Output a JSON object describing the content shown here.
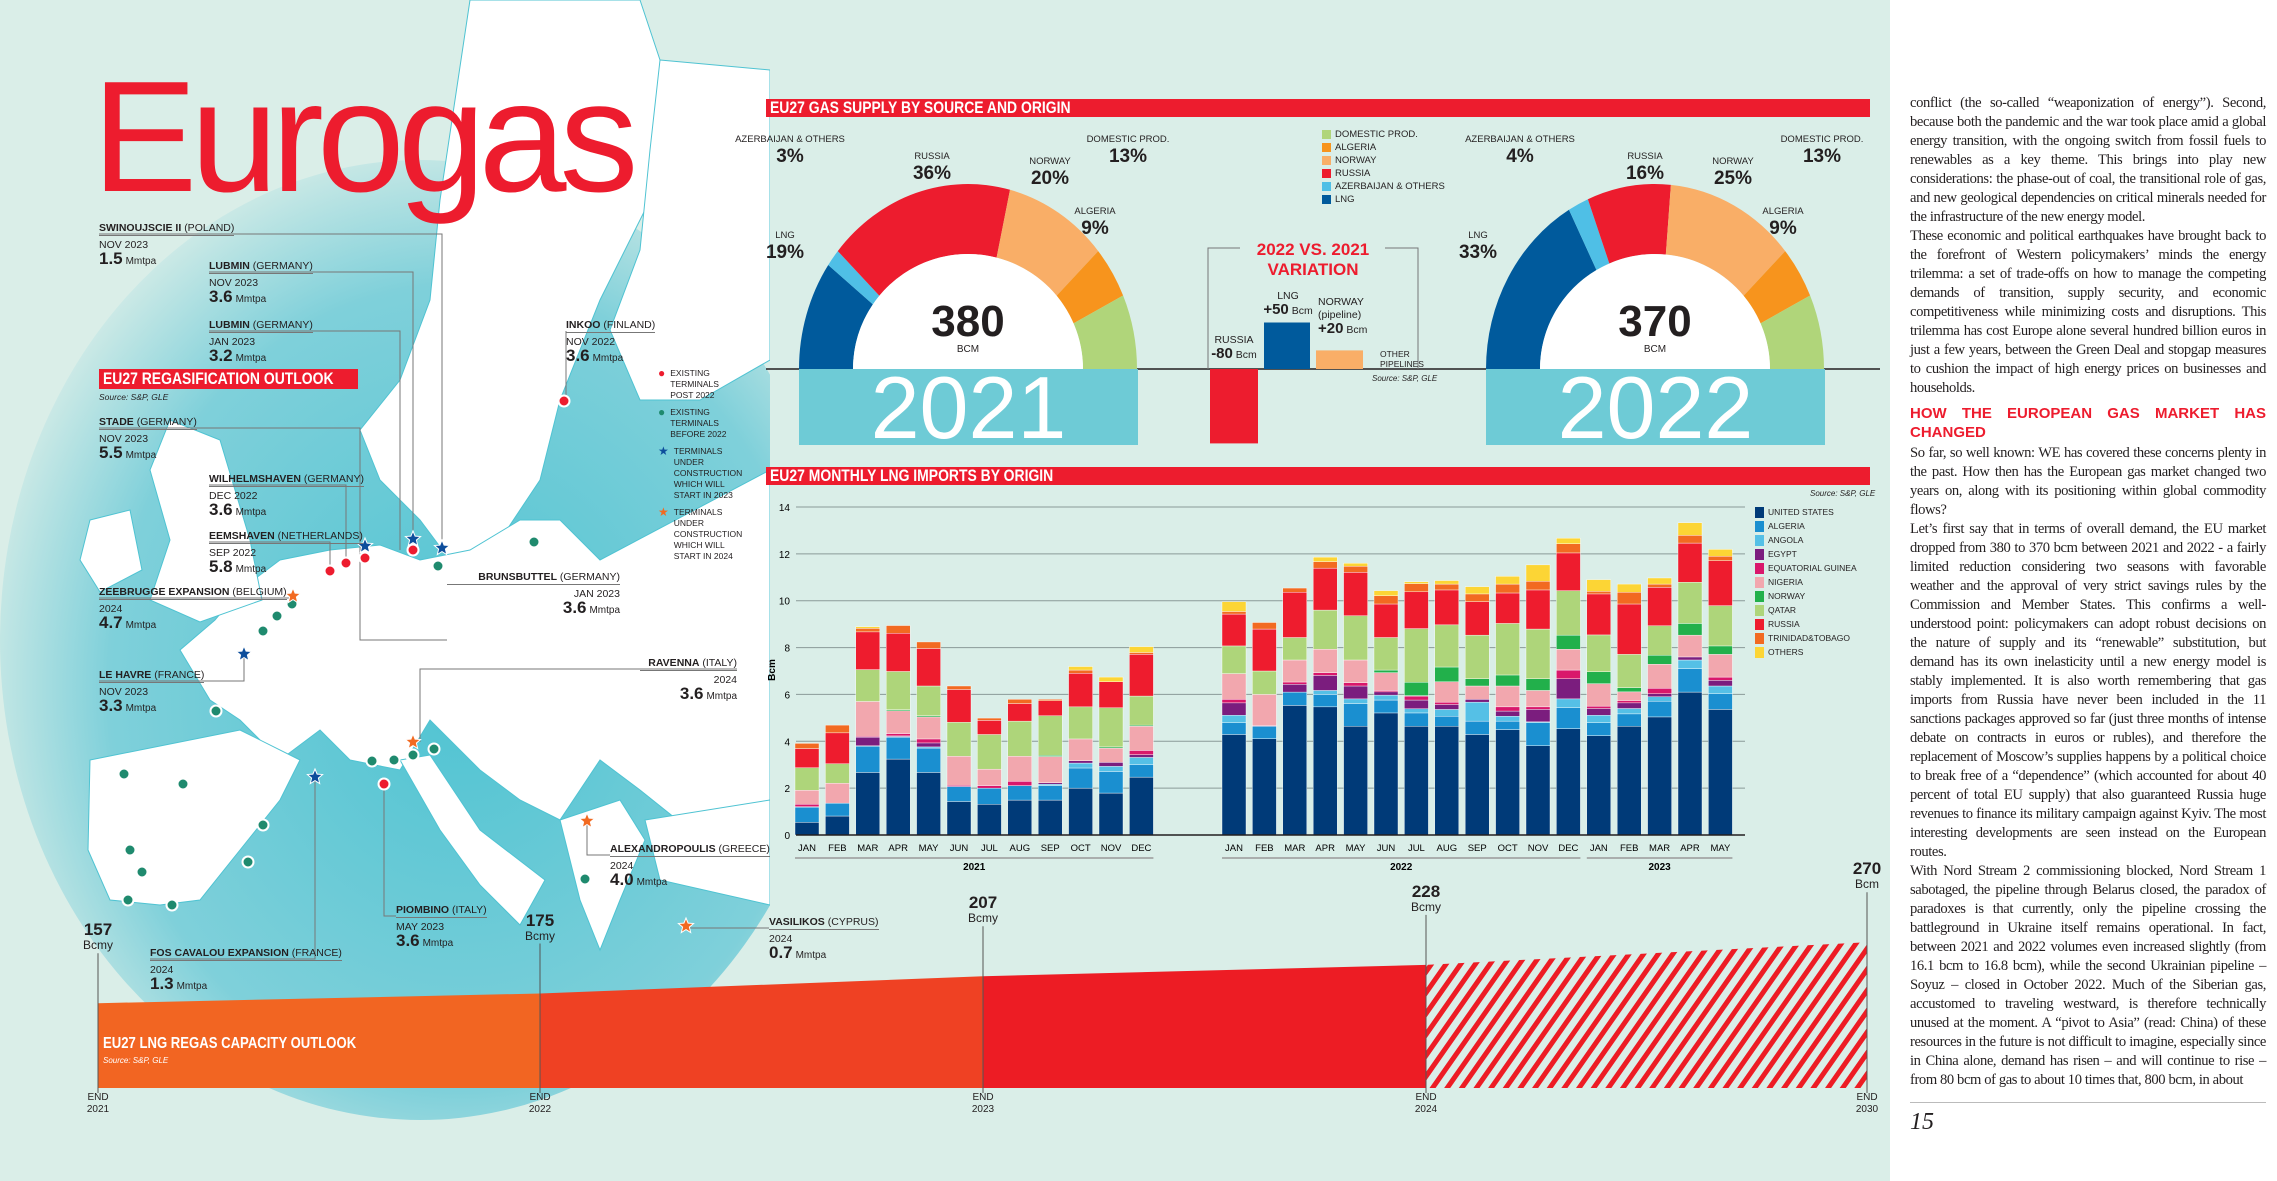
{
  "page_title": "Eurogas",
  "page_number": "15",
  "colors": {
    "brand_red": "#ed1c2e",
    "sea": "#5cc6d3",
    "year_box": "#6ecbd6"
  },
  "regas": {
    "title": "EU27 REGASIFICATION OUTLOOK",
    "source": "Source: S&P, GLE",
    "unit": "Mmtpa",
    "terminals": [
      {
        "name": "SWINOUJSCIE II",
        "country": "(POLAND)",
        "date": "NOV 2023",
        "value": "1.5"
      },
      {
        "name": "LUBMIN",
        "country": "(GERMANY)",
        "date": "NOV 2023",
        "value": "3.6"
      },
      {
        "name": "LUBMIN",
        "country": "(GERMANY)",
        "date": "JAN 2023",
        "value": "3.2"
      },
      {
        "name": "INKOO",
        "country": "(FINLAND)",
        "date": "NOV 2022",
        "value": "3.6"
      },
      {
        "name": "STADE",
        "country": "(GERMANY)",
        "date": "NOV 2023",
        "value": "5.5"
      },
      {
        "name": "WILHELMSHAVEN",
        "country": "(GERMANY)",
        "date": "DEC 2022",
        "value": "3.6"
      },
      {
        "name": "EEMSHAVEN",
        "country": "(NETHERLANDS)",
        "date": "SEP 2022",
        "value": "5.8"
      },
      {
        "name": "ZEEBRUGGE EXPANSION",
        "country": "(BELGIUM)",
        "date": "2024",
        "value": "4.7"
      },
      {
        "name": "BRUNSBUTTEL",
        "country": "(GERMANY)",
        "date": "JAN 2023",
        "value": "3.6"
      },
      {
        "name": "LE HAVRE",
        "country": "(FRANCE)",
        "date": "NOV 2023",
        "value": "3.3"
      },
      {
        "name": "RAVENNA",
        "country": "(ITALY)",
        "date": "2024",
        "value": "3.6"
      },
      {
        "name": "ALEXANDROPOULIS",
        "country": "(GREECE)",
        "date": "2024",
        "value": "4.0"
      },
      {
        "name": "PIOMBINO",
        "country": "(ITALY)",
        "date": "MAY 2023",
        "value": "3.6"
      },
      {
        "name": "FOS CAVALOU EXPANSION",
        "country": "(FRANCE)",
        "date": "2024",
        "value": "1.3"
      },
      {
        "name": "VASILIKOS",
        "country": "(CYPRUS)",
        "date": "2024",
        "value": "0.7"
      }
    ],
    "legend": [
      {
        "label": "EXISTING TERMINALS POST 2022",
        "marker": "dot",
        "color": "#ed1c2e"
      },
      {
        "label": "EXISTING TERMINALS BEFORE 2022",
        "marker": "dot",
        "color": "#1f8a6e"
      },
      {
        "label": "TERMINALS UNDER CONSTRUCTION WHICH WILL START IN 2023",
        "marker": "star",
        "color": "#0d4e9c"
      },
      {
        "label": "TERMINALS UNDER CONSTRUCTION WHICH WILL START IN 2024",
        "marker": "star",
        "color": "#f26a21"
      }
    ]
  },
  "supply": {
    "title": "EU27 GAS SUPPLY BY SOURCE AND ORIGIN",
    "unit": "BCM",
    "legend": [
      {
        "label": "DOMESTIC PROD.",
        "color": "#b0d57a"
      },
      {
        "label": "ALGERIA",
        "color": "#f7941d"
      },
      {
        "label": "NORWAY",
        "color": "#f9ae67"
      },
      {
        "label": "RUSSIA",
        "color": "#ed1c2e"
      },
      {
        "label": "AZERBAIJAN & OTHERS",
        "color": "#4fbfe6"
      },
      {
        "label": "LNG",
        "color": "#005a9c"
      }
    ],
    "years": [
      {
        "year": "2021",
        "total": "380",
        "shares": {
          "lng": "19%",
          "azerbaijan": "3%",
          "russia": "36%",
          "norway": "20%",
          "algeria": "9%",
          "domestic": "13%"
        }
      },
      {
        "year": "2022",
        "total": "370",
        "shares": {
          "lng": "33%",
          "azerbaijan": "4%",
          "russia": "16%",
          "norway": "25%",
          "algeria": "9%",
          "domestic": "13%"
        }
      }
    ],
    "labels": {
      "lng": "LNG",
      "azerbaijan": "AZERBAIJAN & OTHERS",
      "russia": "RUSSIA",
      "norway": "NORWAY",
      "algeria": "ALGERIA",
      "domestic": "DOMESTIC PROD."
    },
    "variation": {
      "title_line1": "2022 VS. 2021",
      "title_line2": "VARIATION",
      "russia_label": "RUSSIA",
      "russia_value": "-80",
      "russia_num": -80,
      "lng_label": "LNG",
      "lng_value": "+50",
      "lng_num": 50,
      "norway_label": "NORWAY",
      "norway_sub": "(pipeline)",
      "norway_value": "+20",
      "norway_num": 20,
      "other_label": "OTHER PIPELINES",
      "unit": "Bcm",
      "source": "Source: S&P, GLE"
    }
  },
  "chart_data": [
    {
      "type": "pie",
      "title": "2021",
      "categories": [
        "LNG",
        "AZERBAIJAN & OTHERS",
        "RUSSIA",
        "NORWAY",
        "ALGERIA",
        "DOMESTIC PROD."
      ],
      "values": [
        19,
        3,
        36,
        20,
        9,
        13
      ],
      "total": 380
    },
    {
      "type": "pie",
      "title": "2022",
      "categories": [
        "LNG",
        "AZERBAIJAN & OTHERS",
        "RUSSIA",
        "NORWAY",
        "ALGERIA",
        "DOMESTIC PROD."
      ],
      "values": [
        33,
        4,
        16,
        25,
        9,
        13
      ],
      "total": 370
    },
    {
      "type": "bar",
      "title": "EU27 MONTHLY LNG IMPORTS BY ORIGIN",
      "source": "Source: S&P, GLE",
      "ylabel": "Bcm",
      "ylim": [
        0,
        14
      ],
      "yticks": [
        "0",
        "2",
        "4",
        "6",
        "8",
        "10",
        "12",
        "14"
      ],
      "grid": true,
      "stacked": true,
      "legend_position": "right",
      "groups": [
        {
          "label": "2021",
          "months": [
            "JAN",
            "FEB",
            "MAR",
            "APR",
            "MAY",
            "JUN",
            "JUL",
            "AUG",
            "SEP",
            "OCT",
            "NOV",
            "DEC"
          ]
        },
        {
          "label": "2022",
          "months": [
            "JAN",
            "FEB",
            "MAR",
            "APR",
            "MAY",
            "JUN",
            "JUL",
            "AUG",
            "SEP",
            "OCT",
            "NOV",
            "DEC"
          ]
        },
        {
          "label": "2023",
          "months": [
            "JAN",
            "FEB",
            "MAR",
            "APR",
            "MAY"
          ]
        }
      ],
      "series": [
        {
          "name": "UNITED STATES",
          "color": "#003a78"
        },
        {
          "name": "ALGERIA",
          "color": "#1a8fd0"
        },
        {
          "name": "ANGOLA",
          "color": "#55c0e6"
        },
        {
          "name": "EGYPT",
          "color": "#7b1d7e"
        },
        {
          "name": "EQUATORIAL GUINEA",
          "color": "#d9176b"
        },
        {
          "name": "NIGERIA",
          "color": "#f2a7ae"
        },
        {
          "name": "NORWAY",
          "color": "#22b04b"
        },
        {
          "name": "QATAR",
          "color": "#aed57a"
        },
        {
          "name": "RUSSIA",
          "color": "#ee1c2e"
        },
        {
          "name": "TRINIDAD&TOBAGO",
          "color": "#f26a21"
        },
        {
          "name": "OTHERS",
          "color": "#fcd535"
        }
      ],
      "values_by_month": [
        [
          0.54,
          0.65,
          0.02,
          0,
          0.1,
          0.6,
          0,
          0.96,
          0.82,
          0.22,
          0
        ],
        [
          0.81,
          0.55,
          0,
          0,
          0,
          0.85,
          0,
          0.83,
          1.32,
          0.33,
          0
        ],
        [
          2.67,
          1.12,
          0.02,
          0.36,
          0.04,
          1.49,
          0,
          1.36,
          1.61,
          0.15,
          0.07
        ],
        [
          3.24,
          0.93,
          0.03,
          0.03,
          0.1,
          0.97,
          0.05,
          1.63,
          1.63,
          0.33,
          0
        ],
        [
          2.67,
          1.04,
          0.05,
          0.17,
          0.17,
          0.94,
          0.05,
          1.27,
          1.6,
          0.28,
          0
        ],
        [
          1.43,
          0.64,
          0,
          0,
          0.05,
          1.24,
          0,
          1.45,
          1.4,
          0.15,
          0
        ],
        [
          1.31,
          0.69,
          0,
          0,
          0.11,
          0.7,
          0,
          1.48,
          0.6,
          0.1,
          0
        ],
        [
          1.49,
          0.62,
          0,
          0,
          0.18,
          1.07,
          0,
          1.5,
          0.75,
          0.18,
          0
        ],
        [
          1.49,
          0.62,
          0.06,
          0.06,
          0,
          1.12,
          0.05,
          1.69,
          0.64,
          0.06,
          0
        ],
        [
          2.0,
          0.86,
          0.21,
          0.1,
          0,
          0.93,
          0,
          1.37,
          1.43,
          0.14,
          0.15
        ],
        [
          1.79,
          0.92,
          0.22,
          0.17,
          0,
          0.61,
          0.05,
          1.67,
          1.11,
          0,
          0.2
        ],
        [
          2.47,
          0.53,
          0.31,
          0.12,
          0.18,
          1.03,
          0.05,
          1.24,
          1.78,
          0.08,
          0.25
        ],
        [
          4.29,
          0.5,
          0.32,
          0.53,
          0.15,
          1.1,
          0,
          1.18,
          1.36,
          0.11,
          0.42
        ],
        [
          4.11,
          0.53,
          0,
          0,
          0.03,
          1.33,
          0,
          1.0,
          1.79,
          0.28,
          0
        ],
        [
          5.53,
          0.57,
          0,
          0.33,
          0.1,
          0.94,
          0,
          0.96,
          1.93,
          0.18,
          0
        ],
        [
          5.47,
          0.53,
          0.17,
          0.64,
          0.12,
          1.0,
          0,
          1.67,
          1.79,
          0.28,
          0.19
        ],
        [
          4.64,
          0.97,
          0.2,
          0.55,
          0.14,
          0.97,
          0,
          1.89,
          1.85,
          0.26,
          0.13
        ],
        [
          5.21,
          0.55,
          0.21,
          0.14,
          0.06,
          0.76,
          0.11,
          1.39,
          1.43,
          0.35,
          0.22
        ],
        [
          4.64,
          0.57,
          0.18,
          0.37,
          0.17,
          0.02,
          0.57,
          2.29,
          1.57,
          0.35,
          0.08
        ],
        [
          4.64,
          0.43,
          0.29,
          0.21,
          0.1,
          0.87,
          0.63,
          1.8,
          1.49,
          0.25,
          0.15
        ],
        [
          4.29,
          0.57,
          0.81,
          0.12,
          0,
          0.57,
          0.31,
          1.86,
          1.43,
          0.33,
          0.31
        ],
        [
          4.5,
          0.36,
          0.21,
          0.22,
          0.18,
          0.89,
          0.47,
          2.2,
          1.3,
          0.38,
          0.33
        ],
        [
          3.81,
          0.98,
          0.04,
          0.53,
          0.11,
          0.7,
          0.5,
          2.12,
          1.67,
          0.37,
          0.7
        ],
        [
          4.54,
          0.89,
          0.38,
          0.86,
          0.37,
          0.89,
          0.6,
          1.9,
          1.61,
          0.39,
          0.24
        ],
        [
          4.24,
          0.55,
          0.32,
          0.29,
          0.1,
          0.96,
          0.51,
          1.57,
          1.75,
          0.11,
          0.5
        ],
        [
          4.64,
          0.53,
          0.23,
          0.24,
          0.1,
          0.37,
          0.18,
          1.42,
          2.15,
          0.5,
          0.35
        ],
        [
          5.04,
          0.67,
          0.19,
          0.13,
          0.23,
          1.03,
          0.38,
          1.26,
          1.64,
          0.14,
          0.26
        ],
        [
          6.1,
          1.0,
          0.37,
          0.13,
          0,
          0.93,
          0.5,
          1.76,
          1.67,
          0.33,
          0.54
        ],
        [
          5.36,
          0.67,
          0.33,
          0.24,
          0.14,
          0.97,
          0.36,
          1.72,
          1.92,
          0.19,
          0.29
        ]
      ]
    },
    {
      "type": "area",
      "title": "EU27 LNG REGAS CAPACITY OUTLOOK",
      "source": "Source: S&P, GLE",
      "categories": [
        "END 2021",
        "END 2022",
        "END 2023",
        "END 2024",
        "END 2030"
      ],
      "x_line1": [
        "END",
        "END",
        "END",
        "END",
        "END"
      ],
      "x_line2": [
        "2021",
        "2022",
        "2023",
        "2024",
        "2030"
      ],
      "values": [
        157,
        175,
        207,
        228,
        270
      ],
      "value_labels": [
        "157",
        "175",
        "207",
        "228",
        "270"
      ],
      "units": [
        "Bcmy",
        "Bcmy",
        "Bcmy",
        "Bcmy",
        "Bcm"
      ],
      "segment_colors": [
        "#f26522",
        "#ef4123",
        "#ed1c24",
        "hatched-#ed1c24"
      ]
    }
  ],
  "article": {
    "paragraphs_before": [
      "conflict (the so-called “weaponization of energy”). Second, because both the pandemic and the war took place amid a global energy transition, with the ongoing switch from fossil fuels to renewables as a key theme. This brings into play new considerations: the phase-out of coal, the transitional role of gas, and new geological dependencies on critical minerals needed for the infrastructure of the new energy model.",
      "These economic and political earthquakes have brought back to the forefront of Western policymakers’ minds the energy trilemma: a set of trade-offs on how to manage the competing demands of transition, supply security, and economic competitiveness while minimizing costs and disruptions. This trilemma has cost Europe alone several hundred billion euros in just a few years, between the Green Deal and stopgap measures to cushion the impact of high energy prices on businesses and households."
    ],
    "heading": "HOW THE EUROPEAN GAS MARKET HAS CHANGED",
    "paragraphs_after": [
      "So far, so well known: WE has covered these concerns plenty in the past. How then has the European gas market changed two years on, along with its positioning within global commodity flows?",
      "Let’s first say that in terms of overall demand, the EU market dropped from 380 to 370 bcm between 2021 and 2022 - a fairly limited reduction considering two seasons with favorable weather and the approval of very strict savings rules by the Commission and Member States. This confirms a well-understood point: policymakers can adopt robust decisions on the nature of supply and its “renewable” substitution, but demand has its own inelasticity until a new energy model is stably implemented. It is also worth remembering that gas imports from Russia have never been included in the 11 sanctions packages approved so far (just three months of intense debate on contracts in euros or rubles), and therefore the replacement of Moscow’s supplies happens by a political choice to break free of a “dependence” (which accounted for about 40 percent of total EU supply) that also guaranteed Russia huge revenues to finance its military campaign against Kyiv. The most interesting developments are seen instead on the European routes.",
      "With Nord Stream 2 commissioning blocked, Nord Stream 1 sabotaged, the pipeline through Belarus closed, the paradox of paradoxes is that currently, only the pipeline crossing the battleground in Ukraine itself remains operational. In fact, between 2021 and 2022 volumes even increased slightly (from 16.1 bcm to 16.8 bcm), while the second Ukrainian pipeline – Soyuz – closed in October 2022. Much of the Siberian gas, accustomed to traveling westward, is therefore technically unused at the moment. A “pivot to Asia” (read: China) of these resources in the future is not difficult to imagine, especially since in China alone, demand has risen – and will continue to rise – from 80 bcm of gas to about 10 times that, 800 bcm, in about"
    ]
  }
}
